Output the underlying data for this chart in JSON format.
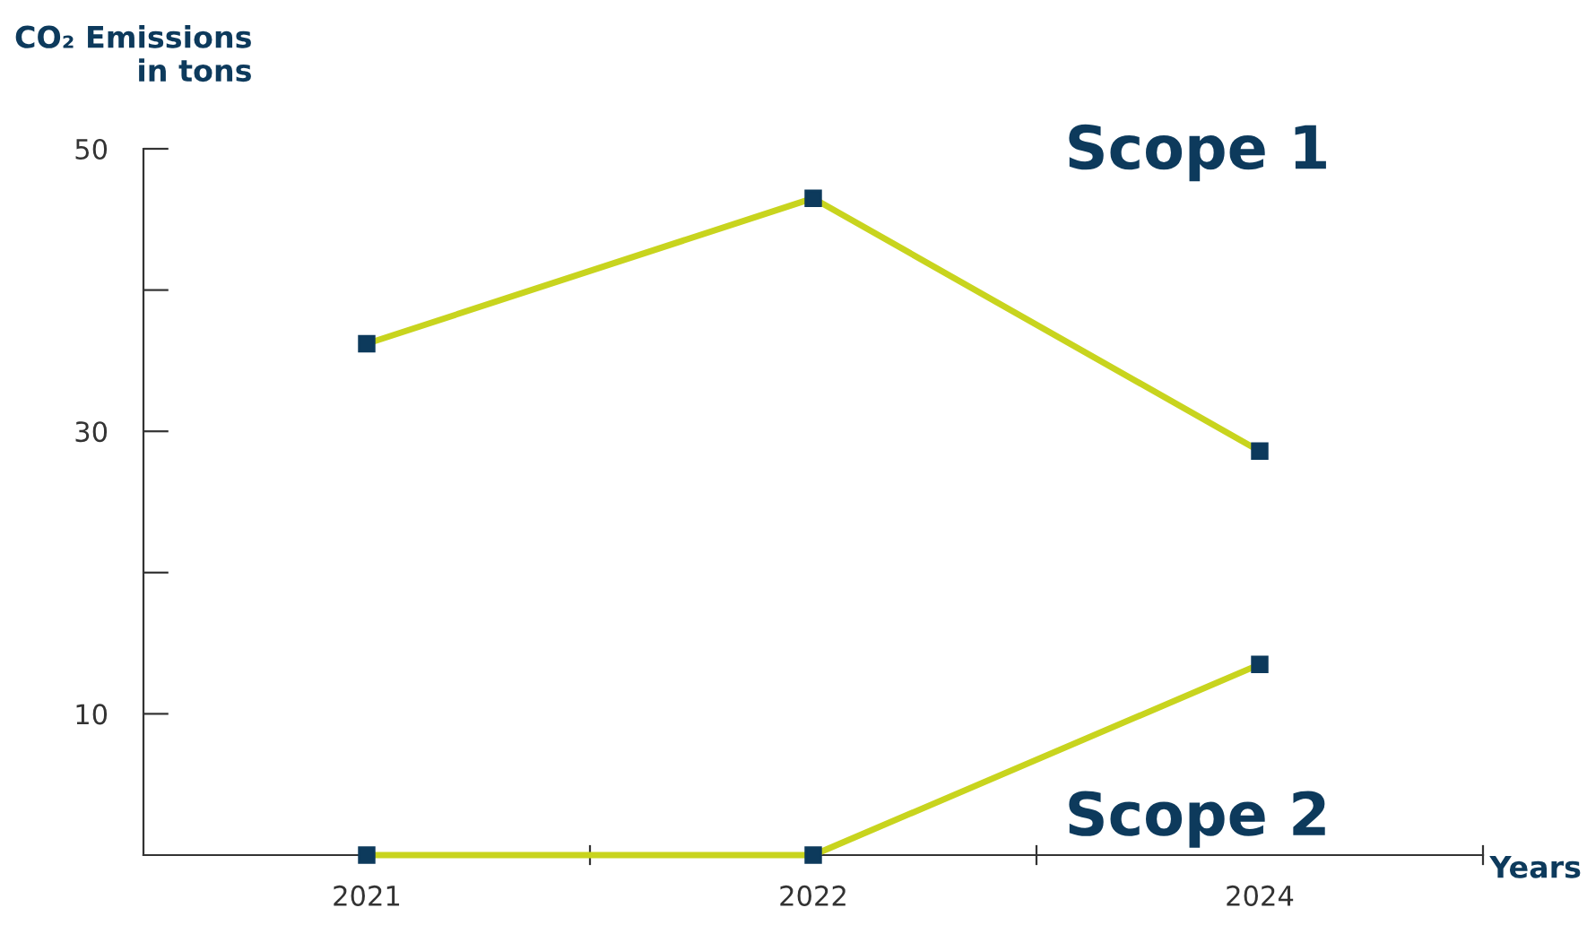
{
  "chart_data": {
    "type": "line",
    "ylabel": "CO₂ Emissions\nin tons",
    "xlabel": "Years",
    "categories": [
      "2021",
      "2022",
      "2024"
    ],
    "series": [
      {
        "name": "Scope 1",
        "color": "#c8d41e",
        "values": [
          36.2,
          46.5,
          28.6
        ]
      },
      {
        "name": "Scope 2",
        "color": "#c8d41e",
        "values": [
          0,
          0,
          13.5
        ]
      }
    ],
    "ylim": [
      0,
      50
    ],
    "yticks": [
      {
        "value": 10,
        "label": "10"
      },
      {
        "value": 20,
        "label": null
      },
      {
        "value": 30,
        "label": "30"
      },
      {
        "value": 40,
        "label": null
      },
      {
        "value": 50,
        "label": "50"
      }
    ],
    "marker": "square",
    "line_style": "solid",
    "grid": false,
    "legend": false
  }
}
